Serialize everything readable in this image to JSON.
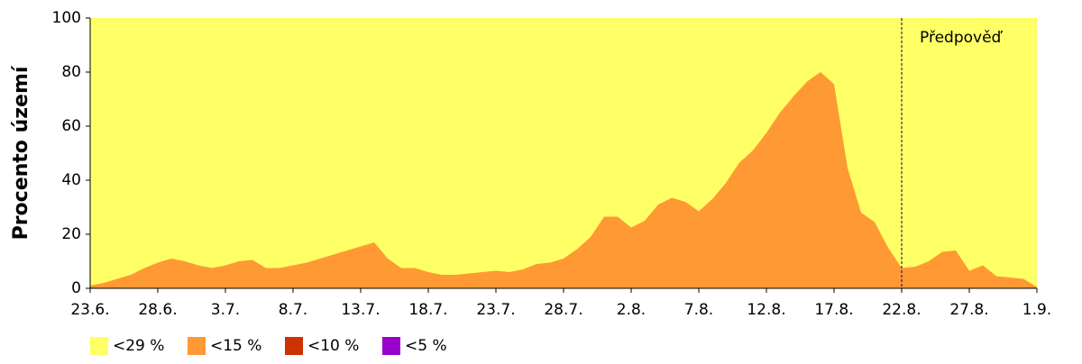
{
  "chart_data": {
    "type": "area",
    "y_label": "Procento území",
    "categories": [
      "23.6.",
      null,
      null,
      null,
      null,
      "28.6.",
      null,
      null,
      null,
      null,
      "3.7.",
      null,
      null,
      null,
      null,
      "8.7.",
      null,
      null,
      null,
      null,
      "13.7.",
      null,
      null,
      null,
      null,
      "18.7.",
      null,
      null,
      null,
      null,
      "23.7.",
      null,
      null,
      null,
      null,
      "28.7.",
      null,
      null,
      null,
      null,
      "2.8.",
      null,
      null,
      null,
      null,
      "7.8.",
      null,
      null,
      null,
      null,
      "12.8.",
      null,
      null,
      null,
      null,
      "17.8.",
      null,
      null,
      null,
      null,
      "22.8.",
      null,
      null,
      null,
      null,
      "27.8.",
      null,
      null,
      null,
      null,
      "1.9."
    ],
    "series": [
      {
        "name": "<29 %",
        "color": "#ffff66",
        "values": [
          100,
          100,
          100,
          100,
          100,
          100,
          100,
          100,
          100,
          100,
          100,
          100,
          100,
          100,
          100,
          100,
          100,
          100,
          100,
          100,
          100,
          100,
          100,
          100,
          100,
          100,
          100,
          100,
          100,
          100,
          100,
          100,
          100,
          100,
          100,
          100,
          100,
          100,
          100,
          100,
          100,
          100,
          100,
          100,
          100,
          100,
          100,
          100,
          100,
          100,
          100,
          100,
          100,
          100,
          100,
          100,
          100,
          100,
          100,
          100,
          100,
          100,
          100,
          100,
          100,
          100,
          100,
          100,
          100,
          100,
          100
        ]
      },
      {
        "name": "<15 %",
        "color": "#ff9933",
        "values": [
          1,
          2,
          3.5,
          5,
          7.5,
          9.5,
          11,
          10,
          8.5,
          7.5,
          8.5,
          10,
          10.5,
          7.5,
          7.5,
          8.5,
          9.5,
          11,
          12.5,
          14,
          15.5,
          17,
          11,
          7.5,
          7.5,
          6,
          5,
          5,
          5.5,
          6,
          6.5,
          6,
          7,
          9,
          9.5,
          11,
          14.5,
          19,
          26.5,
          26.5,
          22.5,
          25,
          31,
          33.5,
          32,
          28.5,
          33,
          39,
          46.5,
          51,
          57.5,
          65,
          71,
          76.5,
          80,
          75.5,
          44.5,
          28,
          24.5,
          15,
          7.5,
          8,
          10,
          13.5,
          14,
          6.5,
          8.5,
          4.5,
          4,
          3.5,
          0.5
        ]
      },
      {
        "name": "<10 %",
        "color": "#cc3300",
        "values": [
          0,
          0,
          0,
          0,
          0,
          0,
          0,
          0,
          0,
          0,
          0,
          0,
          0,
          0,
          0,
          0,
          0,
          0,
          0,
          0,
          0,
          0,
          0,
          0,
          0,
          0,
          0,
          0,
          0,
          0,
          0,
          0,
          0,
          0,
          0,
          0,
          0,
          0,
          0,
          0,
          0,
          0,
          0,
          0,
          0,
          0,
          0,
          0,
          0,
          0,
          0,
          0,
          0,
          0,
          0,
          0,
          0,
          0,
          0,
          0,
          0,
          0,
          0,
          0,
          0,
          0,
          0,
          0,
          0,
          0,
          0
        ]
      },
      {
        "name": "<5 %",
        "color": "#9900cc",
        "values": [
          0,
          0,
          0,
          0,
          0,
          0,
          0,
          0,
          0,
          0,
          0,
          0,
          0,
          0,
          0,
          0,
          0,
          0,
          0,
          0,
          0,
          0,
          0,
          0,
          0,
          0,
          0,
          0,
          0,
          0,
          0,
          0,
          0,
          0,
          0,
          0,
          0,
          0,
          0,
          0,
          0,
          0,
          0,
          0,
          0,
          0,
          0,
          0,
          0,
          0,
          0,
          0,
          0,
          0,
          0,
          0,
          0,
          0,
          0,
          0,
          0,
          0,
          0,
          0,
          0,
          0,
          0,
          0,
          0,
          0,
          0
        ]
      }
    ],
    "ylim": [
      0,
      100
    ],
    "yticks": [
      0,
      20,
      40,
      60,
      80,
      100
    ],
    "grid": false,
    "legend": "bottom-left",
    "annotations": [
      {
        "text": "Předpověď",
        "x": 60
      }
    ]
  }
}
